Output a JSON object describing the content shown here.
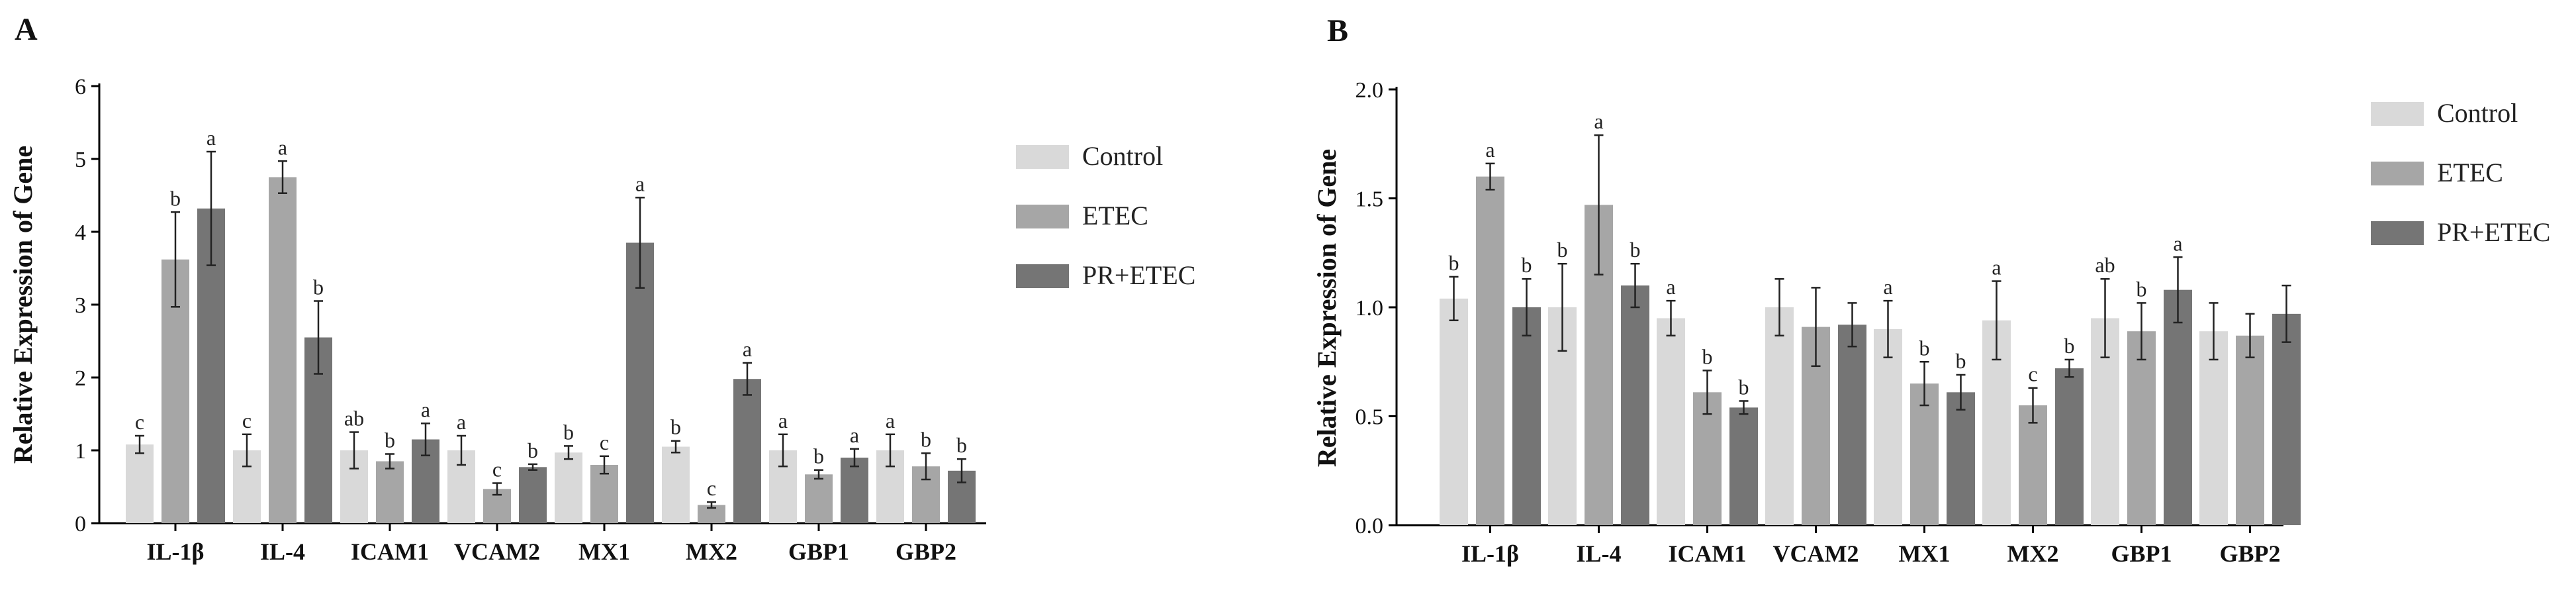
{
  "colors": {
    "Control": "#d9d9d9",
    "ETEC": "#a6a6a6",
    "PR+ETEC": "#757575"
  },
  "chart_data": [
    {
      "panel": "A",
      "type": "bar",
      "ylabel": "Relative Expression of Gene",
      "ylim": [
        0,
        6
      ],
      "yticks": [
        "0",
        "1",
        "2",
        "3",
        "4",
        "5",
        "6"
      ],
      "categories": [
        "IL-1β",
        "IL-4",
        "ICAM1",
        "VCAM2",
        "MX1",
        "MX2",
        "GBP1",
        "GBP2"
      ],
      "legend": [
        "Control",
        "ETEC",
        "PR+ETEC"
      ],
      "series": [
        {
          "name": "Control",
          "values": [
            1.08,
            1.0,
            1.0,
            1.0,
            0.97,
            1.05,
            1.0,
            1.0
          ],
          "errors": [
            0.12,
            0.22,
            0.25,
            0.2,
            0.09,
            0.08,
            0.22,
            0.22
          ],
          "labels": [
            "c",
            "c",
            "ab",
            "a",
            "b",
            "b",
            "a",
            "a"
          ]
        },
        {
          "name": "ETEC",
          "values": [
            3.62,
            4.75,
            0.85,
            0.47,
            0.8,
            0.25,
            0.67,
            0.78
          ],
          "errors": [
            0.65,
            0.22,
            0.1,
            0.08,
            0.12,
            0.04,
            0.06,
            0.18
          ],
          "labels": [
            "b",
            "a",
            "b",
            "c",
            "c",
            "c",
            "b",
            "b"
          ]
        },
        {
          "name": "PR+ETEC",
          "values": [
            4.32,
            2.55,
            1.15,
            0.77,
            3.85,
            1.98,
            0.9,
            0.72
          ],
          "errors": [
            0.78,
            0.5,
            0.22,
            0.04,
            0.62,
            0.22,
            0.12,
            0.16
          ],
          "labels": [
            "a",
            "b",
            "a",
            "b",
            "a",
            "a",
            "a",
            "b"
          ]
        }
      ]
    },
    {
      "panel": "B",
      "type": "bar",
      "ylabel": "Relative Expression of Gene",
      "ylim": [
        0,
        2.0
      ],
      "yticks": [
        "0.0",
        "0.5",
        "1.0",
        "1.5",
        "2.0"
      ],
      "categories": [
        "IL-1β",
        "IL-4",
        "ICAM1",
        "VCAM2",
        "MX1",
        "MX2",
        "GBP1",
        "GBP2"
      ],
      "legend": [
        "Control",
        "ETEC",
        "PR+ETEC"
      ],
      "series": [
        {
          "name": "Control",
          "values": [
            1.04,
            1.0,
            0.95,
            1.0,
            0.9,
            0.94,
            0.95,
            0.89
          ],
          "errors": [
            0.1,
            0.2,
            0.08,
            0.13,
            0.13,
            0.18,
            0.18,
            0.13
          ],
          "labels": [
            "b",
            "b",
            "a",
            "",
            "a",
            "a",
            "ab",
            ""
          ]
        },
        {
          "name": "ETEC",
          "values": [
            1.6,
            1.47,
            0.61,
            0.91,
            0.65,
            0.55,
            0.89,
            0.87
          ],
          "errors": [
            0.06,
            0.32,
            0.1,
            0.18,
            0.1,
            0.08,
            0.13,
            0.1
          ],
          "labels": [
            "a",
            "a",
            "b",
            "",
            "b",
            "c",
            "b",
            ""
          ]
        },
        {
          "name": "PR+ETEC",
          "values": [
            1.0,
            1.1,
            0.54,
            0.92,
            0.61,
            0.72,
            1.08,
            0.97
          ],
          "errors": [
            0.13,
            0.1,
            0.03,
            0.1,
            0.08,
            0.04,
            0.15,
            0.13
          ],
          "labels": [
            "b",
            "b",
            "b",
            "",
            "b",
            "b",
            "a",
            ""
          ]
        }
      ]
    }
  ]
}
